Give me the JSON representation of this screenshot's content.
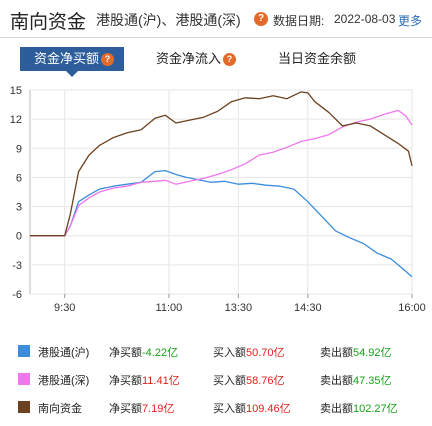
{
  "header": {
    "title": "南向资金",
    "subtitle": "港股通(沪)、港股通(深)",
    "help_glyph": "?",
    "date_label": "数据日期:",
    "date_value": "2022-08-03",
    "more_label": "更多"
  },
  "tabs": [
    {
      "label": "资金净买额",
      "active": true,
      "has_help": true
    },
    {
      "label": "资金净流入",
      "active": false,
      "has_help": true
    },
    {
      "label": "当日资金余额",
      "active": false,
      "has_help": false
    }
  ],
  "chart_data": {
    "type": "line",
    "y_ticks": [
      15,
      12,
      9,
      6,
      3,
      0,
      -3,
      -6
    ],
    "ylim": [
      -6,
      15
    ],
    "x_tick_labels": [
      "9:30",
      "11:00",
      "13:30",
      "14:30",
      "16:00"
    ],
    "x_tick_pos": [
      0.0,
      1.5,
      2.5,
      3.5,
      5.0
    ],
    "xlim": [
      -0.5,
      5.0
    ],
    "series": [
      {
        "name": "港股通(沪)",
        "color": "#3c8ddc",
        "x": [
          -0.5,
          0,
          0.08,
          0.2,
          0.35,
          0.5,
          0.7,
          0.9,
          1.1,
          1.3,
          1.45,
          1.6,
          1.75,
          1.9,
          2.1,
          2.3,
          2.5,
          2.7,
          2.9,
          3.1,
          3.3,
          3.5,
          3.7,
          3.9,
          4.1,
          4.3,
          4.5,
          4.7,
          4.85,
          5.0
        ],
        "y": [
          0,
          0,
          1.0,
          3.5,
          4.2,
          4.8,
          5.1,
          5.3,
          5.5,
          6.6,
          6.7,
          6.3,
          6.0,
          5.8,
          5.5,
          5.6,
          5.3,
          5.4,
          5.2,
          5.1,
          4.8,
          3.5,
          2.0,
          0.5,
          -0.2,
          -0.8,
          -1.8,
          -2.4,
          -3.3,
          -4.22
        ]
      },
      {
        "name": "港股通(深)",
        "color": "#ee77ee",
        "x": [
          -0.5,
          0,
          0.08,
          0.2,
          0.35,
          0.5,
          0.7,
          0.9,
          1.1,
          1.3,
          1.45,
          1.6,
          1.8,
          2.0,
          2.2,
          2.4,
          2.6,
          2.8,
          3.0,
          3.2,
          3.4,
          3.6,
          3.8,
          4.0,
          4.2,
          4.4,
          4.6,
          4.8,
          4.9,
          5.0
        ],
        "y": [
          0,
          0,
          1.0,
          3.1,
          3.9,
          4.5,
          4.9,
          5.1,
          5.5,
          5.6,
          5.7,
          5.3,
          5.6,
          5.9,
          6.3,
          6.8,
          7.4,
          8.3,
          8.6,
          9.1,
          9.7,
          10.0,
          10.4,
          11.2,
          11.7,
          12.0,
          12.5,
          12.9,
          12.4,
          11.41
        ]
      },
      {
        "name": "南向资金",
        "color": "#6b4220",
        "x": [
          -0.5,
          0,
          0.08,
          0.2,
          0.35,
          0.5,
          0.7,
          0.9,
          1.1,
          1.3,
          1.45,
          1.6,
          1.8,
          2.0,
          2.2,
          2.4,
          2.6,
          2.8,
          3.0,
          3.2,
          3.4,
          3.5,
          3.6,
          3.8,
          4.0,
          4.2,
          4.4,
          4.6,
          4.8,
          4.95,
          5.0
        ],
        "y": [
          0,
          0,
          2.2,
          6.6,
          8.3,
          9.3,
          10.1,
          10.6,
          10.9,
          12.1,
          12.4,
          11.6,
          11.9,
          12.2,
          12.8,
          13.8,
          14.2,
          14.1,
          14.4,
          14.1,
          14.8,
          14.7,
          13.8,
          12.7,
          11.3,
          11.6,
          11.3,
          10.4,
          9.5,
          8.7,
          7.19
        ]
      }
    ]
  },
  "legend": [
    {
      "name": "港股通(沪)",
      "color": "#3c8ddc",
      "net_label": "净买额",
      "net_value": "-4.22亿",
      "net_sign": "neg",
      "buy_label": "买入额",
      "buy_value": "50.70亿",
      "sell_label": "卖出额",
      "sell_value": "54.92亿"
    },
    {
      "name": "港股通(深)",
      "color": "#ee77ee",
      "net_label": "净买额",
      "net_value": "11.41亿",
      "net_sign": "pos",
      "buy_label": "买入额",
      "buy_value": "58.76亿",
      "sell_label": "卖出额",
      "sell_value": "47.35亿"
    },
    {
      "name": "南向资金",
      "color": "#6b4220",
      "net_label": "净买额",
      "net_value": "7.19亿",
      "net_sign": "pos",
      "buy_label": "买入额",
      "buy_value": "109.46亿",
      "sell_label": "卖出额",
      "sell_value": "102.27亿"
    }
  ]
}
